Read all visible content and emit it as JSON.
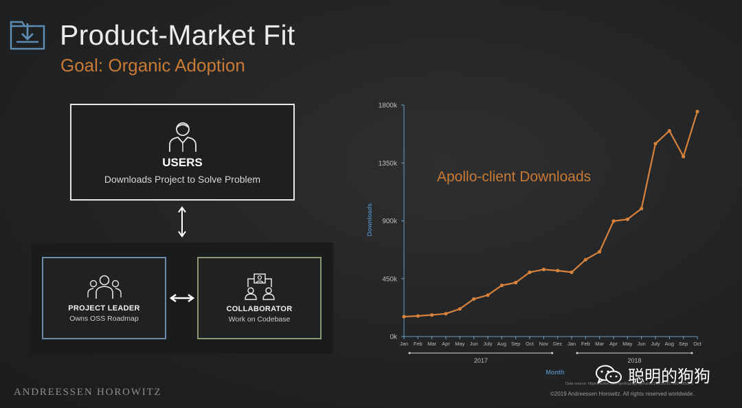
{
  "header": {
    "title": "Product-Market Fit",
    "subtitle": "Goal: Organic Adoption"
  },
  "diagram": {
    "users": {
      "title": "USERS",
      "description": "Downloads Project to Solve Problem"
    },
    "project_leader": {
      "title": "PROJECT LEADER",
      "description": "Owns OSS Roadmap"
    },
    "collaborator": {
      "title": "COLLABORATOR",
      "description": "Work on Codebase"
    }
  },
  "chart_data": {
    "type": "line",
    "annotation": "Apollo-client Downloads",
    "ylabel": "Downloads",
    "xlabel": "Month",
    "ylim": [
      0,
      1800000
    ],
    "yticks": [
      0,
      450000,
      900000,
      1350000,
      1800000
    ],
    "ytick_labels": [
      "0k",
      "450k",
      "900k",
      "1350k",
      "1800k"
    ],
    "categories": [
      "Jan",
      "Feb",
      "Mar",
      "Apr",
      "May",
      "Jun",
      "July",
      "Aug",
      "Sep",
      "Oct",
      "Nov",
      "Dec",
      "Jan",
      "Feb",
      "Mar",
      "Apr",
      "May",
      "Jun",
      "July",
      "Aug",
      "Sep",
      "Oct"
    ],
    "year_groups": [
      {
        "label": "2017",
        "start": 0,
        "end": 11
      },
      {
        "label": "2018",
        "start": 12,
        "end": 21
      }
    ],
    "series": [
      {
        "color": "#d9823b",
        "values": [
          155000,
          160000,
          168000,
          178000,
          215000,
          292000,
          322000,
          398000,
          420000,
          500000,
          522000,
          513000,
          500000,
          598000,
          660000,
          898000,
          912000,
          995000,
          1500000,
          1600000,
          1400000,
          1750000
        ]
      }
    ],
    "grid": false,
    "axis_color": "#6a9ec4"
  },
  "footer": {
    "brand": "ANDREESSEN HOROWITZ",
    "data_source": "Data source: https://twitter.com/apollographql/status/1060223579667685376",
    "copyright": "©2019 Andreessen Horowitz. All rights reserved worldwide.",
    "watermark": "聪明的狗狗"
  }
}
